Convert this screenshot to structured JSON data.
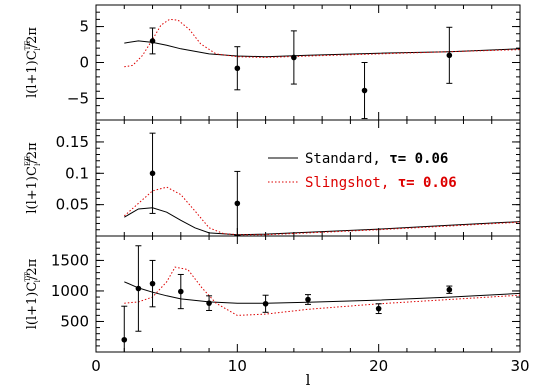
{
  "chart_data": {
    "type": "line",
    "xlabel": "l",
    "xlim": [
      0,
      30
    ],
    "xticks": [
      0,
      10,
      20,
      30
    ],
    "legend": {
      "placement": "top-right of middle panel",
      "entries": [
        {
          "series": "Standard",
          "label": "Standard, ",
          "tau_label": "τ= 0.06",
          "color": "#000000",
          "dash": "solid"
        },
        {
          "series": "Slingshot",
          "label": "Slingshot, ",
          "tau_label": "τ= 0.06",
          "color": "#dd0000",
          "dash": "dotted"
        }
      ]
    },
    "panels": [
      {
        "id": "TE",
        "ylabel": "l(l+1)C",
        "ylabel_sub": "l",
        "ylabel_sup": "TE",
        "ylabel_tail": "/2π",
        "ylim": [
          -8,
          8
        ],
        "yticks": [
          -5,
          0,
          5
        ],
        "ytick_labels": [
          "−5",
          "0",
          "5"
        ],
        "series": [
          {
            "name": "Standard",
            "color": "#000000",
            "dash": "solid",
            "x": [
              2,
              3,
              4,
              5,
              6,
              8,
              10,
              12,
              15,
              20,
              25,
              30
            ],
            "y": [
              2.7,
              3.0,
              2.8,
              2.4,
              1.9,
              1.2,
              0.9,
              0.8,
              1.0,
              1.3,
              1.5,
              1.9
            ]
          },
          {
            "name": "Slingshot",
            "color": "#dd0000",
            "dash": "dotted",
            "x": [
              2,
              2.6,
              3.3,
              4,
              4.6,
              5.2,
              5.8,
              6.6,
              7.4,
              8.5,
              10,
              12,
              15,
              20,
              25,
              30
            ],
            "y": [
              -0.6,
              -0.4,
              1.0,
              3.2,
              5.2,
              6.0,
              5.9,
              4.6,
              2.6,
              1.2,
              0.8,
              0.7,
              0.9,
              1.2,
              1.5,
              1.8
            ]
          }
        ],
        "points": [
          {
            "x": 4,
            "y": 3.0,
            "err": 1.8
          },
          {
            "x": 10,
            "y": -0.8,
            "err": 3.0
          },
          {
            "x": 14,
            "y": 0.7,
            "err": 3.7
          },
          {
            "x": 19,
            "y": -3.9,
            "err": 3.9
          },
          {
            "x": 25,
            "y": 1.0,
            "err": 3.9
          }
        ]
      },
      {
        "id": "EE",
        "ylabel": "l(l+1)C",
        "ylabel_sub": "l",
        "ylabel_sup": "EE",
        "ylabel_tail": "/2π",
        "ylim": [
          0,
          0.185
        ],
        "yticks": [
          0.05,
          0.1,
          0.15
        ],
        "ytick_labels": [
          "0.05",
          "0.1",
          "0.15"
        ],
        "series": [
          {
            "name": "Standard",
            "color": "#000000",
            "dash": "solid",
            "x": [
              2,
              3,
              4,
              5,
              6,
              7,
              8,
              10,
              12,
              15,
              20,
              25,
              30
            ],
            "y": [
              0.03,
              0.043,
              0.045,
              0.038,
              0.025,
              0.013,
              0.005,
              0.002,
              0.003,
              0.006,
              0.011,
              0.017,
              0.023
            ]
          },
          {
            "name": "Slingshot",
            "color": "#dd0000",
            "dash": "dotted",
            "x": [
              2,
              3,
              4,
              5,
              6,
              7,
              8,
              9,
              10,
              12,
              15,
              20,
              25,
              30
            ],
            "y": [
              0.032,
              0.052,
              0.072,
              0.078,
              0.066,
              0.04,
              0.013,
              0.004,
              0.002,
              0.002,
              0.005,
              0.01,
              0.016,
              0.022
            ]
          }
        ],
        "points": [
          {
            "x": 4,
            "y": 0.1,
            "err": 0.064
          },
          {
            "x": 10,
            "y": 0.052,
            "err": 0.051
          }
        ]
      },
      {
        "id": "TT",
        "ylabel": "l(l+1)C",
        "ylabel_sub": "l",
        "ylabel_sup": "TT",
        "ylabel_tail": "/2π",
        "ylim": [
          0,
          1900
        ],
        "yticks": [
          500,
          1000,
          1500
        ],
        "ytick_labels": [
          "500",
          "1000",
          "1500"
        ],
        "series": [
          {
            "name": "Standard",
            "color": "#000000",
            "dash": "solid",
            "x": [
              2,
              3,
              4,
              5,
              6,
              8,
              10,
              12,
              15,
              20,
              25,
              30
            ],
            "y": [
              1150,
              1050,
              980,
              920,
              870,
              820,
              800,
              800,
              815,
              850,
              900,
              960
            ]
          },
          {
            "name": "Slingshot",
            "color": "#dd0000",
            "dash": "dotted",
            "x": [
              2,
              3,
              4,
              5,
              5.6,
              6.5,
              7.5,
              8.5,
              10,
              12,
              15,
              20,
              25,
              30
            ],
            "y": [
              800,
              820,
              900,
              1150,
              1390,
              1350,
              1050,
              800,
              600,
              620,
              700,
              790,
              860,
              930
            ]
          }
        ],
        "points": [
          {
            "x": 2,
            "y": 200,
            "err": 550
          },
          {
            "x": 3,
            "y": 1040,
            "err": 700
          },
          {
            "x": 4,
            "y": 1120,
            "err": 380
          },
          {
            "x": 6,
            "y": 990,
            "err": 280
          },
          {
            "x": 8,
            "y": 800,
            "err": 120
          },
          {
            "x": 12,
            "y": 790,
            "err": 140
          },
          {
            "x": 15,
            "y": 860,
            "err": 80
          },
          {
            "x": 20,
            "y": 710,
            "err": 80
          },
          {
            "x": 25,
            "y": 1020,
            "err": 60
          }
        ]
      }
    ]
  }
}
